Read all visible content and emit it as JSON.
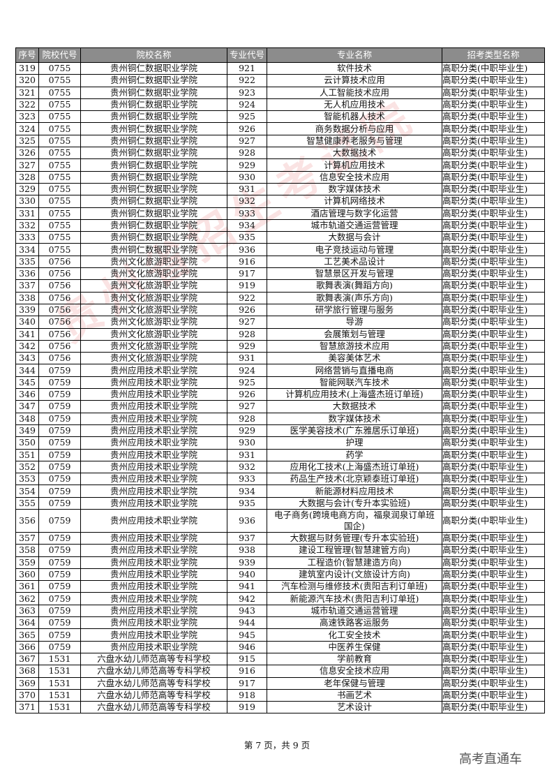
{
  "headers": [
    "序号",
    "院校代号",
    "院校名称",
    "专业代号",
    "专业名称",
    "招考类型名称"
  ],
  "rows": [
    [
      "319",
      "0755",
      "贵州铜仁数据职业学院",
      "921",
      "软件技术",
      "高职分类(中职毕业生)"
    ],
    [
      "320",
      "0755",
      "贵州铜仁数据职业学院",
      "922",
      "云计算技术应用",
      "高职分类(中职毕业生)"
    ],
    [
      "321",
      "0755",
      "贵州铜仁数据职业学院",
      "923",
      "人工智能技术应用",
      "高职分类(中职毕业生)"
    ],
    [
      "322",
      "0755",
      "贵州铜仁数据职业学院",
      "924",
      "无人机应用技术",
      "高职分类(中职毕业生)"
    ],
    [
      "323",
      "0755",
      "贵州铜仁数据职业学院",
      "925",
      "智能机器人技术",
      "高职分类(中职毕业生)"
    ],
    [
      "324",
      "0755",
      "贵州铜仁数据职业学院",
      "926",
      "商务数据分析与应用",
      "高职分类(中职毕业生)"
    ],
    [
      "325",
      "0755",
      "贵州铜仁数据职业学院",
      "927",
      "智慧健康养老服务与管理",
      "高职分类(中职毕业生)"
    ],
    [
      "326",
      "0755",
      "贵州铜仁数据职业学院",
      "928",
      "大数据技术",
      "高职分类(中职毕业生)"
    ],
    [
      "327",
      "0755",
      "贵州铜仁数据职业学院",
      "929",
      "计算机应用技术",
      "高职分类(中职毕业生)"
    ],
    [
      "328",
      "0755",
      "贵州铜仁数据职业学院",
      "930",
      "信息安全技术应用",
      "高职分类(中职毕业生)"
    ],
    [
      "329",
      "0755",
      "贵州铜仁数据职业学院",
      "931",
      "数字媒体技术",
      "高职分类(中职毕业生)"
    ],
    [
      "330",
      "0755",
      "贵州铜仁数据职业学院",
      "932",
      "计算机网络技术",
      "高职分类(中职毕业生)"
    ],
    [
      "331",
      "0755",
      "贵州铜仁数据职业学院",
      "933",
      "酒店管理与数字化运营",
      "高职分类(中职毕业生)"
    ],
    [
      "332",
      "0755",
      "贵州铜仁数据职业学院",
      "934",
      "城市轨道交通运营管理",
      "高职分类(中职毕业生)"
    ],
    [
      "333",
      "0755",
      "贵州铜仁数据职业学院",
      "935",
      "大数据与会计",
      "高职分类(中职毕业生)"
    ],
    [
      "334",
      "0755",
      "贵州铜仁数据职业学院",
      "936",
      "电子竞技运动与管理",
      "高职分类(中职毕业生)"
    ],
    [
      "335",
      "0756",
      "贵州文化旅游职业学院",
      "916",
      "工艺美术品设计",
      "高职分类(中职毕业生)"
    ],
    [
      "336",
      "0756",
      "贵州文化旅游职业学院",
      "917",
      "智慧景区开发与管理",
      "高职分类(中职毕业生)"
    ],
    [
      "337",
      "0756",
      "贵州文化旅游职业学院",
      "919",
      "歌舞表演(舞蹈方向)",
      "高职分类(中职毕业生)"
    ],
    [
      "338",
      "0756",
      "贵州文化旅游职业学院",
      "922",
      "歌舞表演(声乐方向)",
      "高职分类(中职毕业生)"
    ],
    [
      "339",
      "0756",
      "贵州文化旅游职业学院",
      "926",
      "研学旅行管理与服务",
      "高职分类(中职毕业生)"
    ],
    [
      "340",
      "0756",
      "贵州文化旅游职业学院",
      "927",
      "导游",
      "高职分类(中职毕业生)"
    ],
    [
      "341",
      "0756",
      "贵州文化旅游职业学院",
      "928",
      "会展策划与管理",
      "高职分类(中职毕业生)"
    ],
    [
      "342",
      "0756",
      "贵州文化旅游职业学院",
      "929",
      "智慧旅游技术应用",
      "高职分类(中职毕业生)"
    ],
    [
      "343",
      "0756",
      "贵州文化旅游职业学院",
      "931",
      "美容美体艺术",
      "高职分类(中职毕业生)"
    ],
    [
      "344",
      "0759",
      "贵州应用技术职业学院",
      "924",
      "网络营销与直播电商",
      "高职分类(中职毕业生)"
    ],
    [
      "345",
      "0759",
      "贵州应用技术职业学院",
      "925",
      "智能网联汽车技术",
      "高职分类(中职毕业生)"
    ],
    [
      "346",
      "0759",
      "贵州应用技术职业学院",
      "926",
      "计算机应用技术(上海盛杰班订单班)",
      "高职分类(中职毕业生)"
    ],
    [
      "347",
      "0759",
      "贵州应用技术职业学院",
      "927",
      "大数据技术",
      "高职分类(中职毕业生)"
    ],
    [
      "348",
      "0759",
      "贵州应用技术职业学院",
      "928",
      "数字媒体技术",
      "高职分类(中职毕业生)"
    ],
    [
      "349",
      "0759",
      "贵州应用技术职业学院",
      "929",
      "医学美容技术(广东雅居乐订单班)",
      "高职分类(中职毕业生)"
    ],
    [
      "350",
      "0759",
      "贵州应用技术职业学院",
      "930",
      "护理",
      "高职分类(中职毕业生)"
    ],
    [
      "351",
      "0759",
      "贵州应用技术职业学院",
      "931",
      "药学",
      "高职分类(中职毕业生)"
    ],
    [
      "352",
      "0759",
      "贵州应用技术职业学院",
      "932",
      "应用化工技术(上海盛杰班订单班)",
      "高职分类(中职毕业生)"
    ],
    [
      "353",
      "0759",
      "贵州应用技术职业学院",
      "933",
      "药品生产技术(北京颖泰班订单班)",
      "高职分类(中职毕业生)"
    ],
    [
      "354",
      "0759",
      "贵州应用技术职业学院",
      "934",
      "新能源材料应用技术",
      "高职分类(中职毕业生)"
    ],
    [
      "355",
      "0759",
      "贵州应用技术职业学院",
      "935",
      "大数据与会计(专升本实验班)",
      "高职分类(中职毕业生)"
    ],
    [
      "356",
      "0759",
      "贵州应用技术职业学院",
      "936",
      "电子商务(跨境电商方向，福泉润泉订单班国企)",
      "高职分类(中职毕业生)"
    ],
    [
      "357",
      "0759",
      "贵州应用技术职业学院",
      "937",
      "大数据与财务管理(专升本实验班)",
      "高职分类(中职毕业生)"
    ],
    [
      "358",
      "0759",
      "贵州应用技术职业学院",
      "938",
      "建设工程管理(智慧建管方向)",
      "高职分类(中职毕业生)"
    ],
    [
      "359",
      "0759",
      "贵州应用技术职业学院",
      "939",
      "工程造价(智慧建造方向)",
      "高职分类(中职毕业生)"
    ],
    [
      "360",
      "0759",
      "贵州应用技术职业学院",
      "940",
      "建筑室内设计(文旅设计方向)",
      "高职分类(中职毕业生)"
    ],
    [
      "361",
      "0759",
      "贵州应用技术职业学院",
      "941",
      "汽车检测与维修技术(贵阳吉利订单班)",
      "高职分类(中职毕业生)"
    ],
    [
      "362",
      "0759",
      "贵州应用技术职业学院",
      "942",
      "新能源汽车技术(贵阳吉利订单班)",
      "高职分类(中职毕业生)"
    ],
    [
      "363",
      "0759",
      "贵州应用技术职业学院",
      "943",
      "城市轨道交通运营管理",
      "高职分类(中职毕业生)"
    ],
    [
      "364",
      "0759",
      "贵州应用技术职业学院",
      "944",
      "高速铁路客运服务",
      "高职分类(中职毕业生)"
    ],
    [
      "365",
      "0759",
      "贵州应用技术职业学院",
      "945",
      "化工安全技术",
      "高职分类(中职毕业生)"
    ],
    [
      "366",
      "0759",
      "贵州应用技术职业学院",
      "946",
      "中医养生保健",
      "高职分类(中职毕业生)"
    ],
    [
      "367",
      "1531",
      "六盘水幼儿师范高等专科学校",
      "915",
      "学前教育",
      "高职分类(中职毕业生)"
    ],
    [
      "368",
      "1531",
      "六盘水幼儿师范高等专科学校",
      "916",
      "信息安全技术应用",
      "高职分类(中职毕业生)"
    ],
    [
      "369",
      "1531",
      "六盘水幼儿师范高等专科学校",
      "917",
      "老年保健与管理",
      "高职分类(中职毕业生)"
    ],
    [
      "370",
      "1531",
      "六盘水幼儿师范高等专科学校",
      "918",
      "书画艺术",
      "高职分类(中职毕业生)"
    ],
    [
      "371",
      "1531",
      "六盘水幼儿师范高等专科学校",
      "919",
      "艺术设计",
      "高职分类(中职毕业生)"
    ]
  ],
  "footer": {
    "page_label": "第 7 页，共 9 页"
  },
  "brand": "高考直通车",
  "watermark": "贵州省招生考试院",
  "colors": {
    "header_bg": "#8c8c8c",
    "watermark": "#dc2828"
  }
}
